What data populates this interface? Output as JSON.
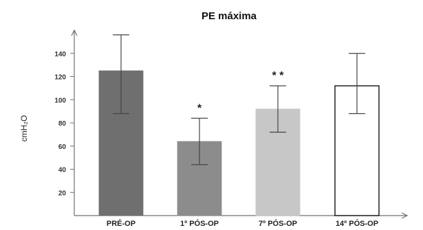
{
  "chart_data": {
    "type": "bar",
    "title": "PE máxima",
    "ylabel": "cmH₂O",
    "ylim": [
      0,
      160
    ],
    "yticks": [
      20,
      40,
      60,
      80,
      100,
      120,
      140
    ],
    "grid": false,
    "categories": [
      "PRÉ-OP",
      "1º PÓS-OP",
      "7º PÓS-OP",
      "14º PÓS-OP"
    ],
    "values": [
      125,
      64,
      92,
      112
    ],
    "error_low": [
      88,
      44,
      72,
      88
    ],
    "error_high": [
      156,
      84,
      112,
      140
    ],
    "annotations": [
      "",
      "*",
      "* *",
      ""
    ],
    "bar_colors": [
      "#6f6f6f",
      "#8c8c8c",
      "#c7c7c7",
      "#ffffff"
    ],
    "bar_outline_colors": [
      "#6f6f6f",
      "#8c8c8c",
      "#c7c7c7",
      "#111111"
    ]
  }
}
